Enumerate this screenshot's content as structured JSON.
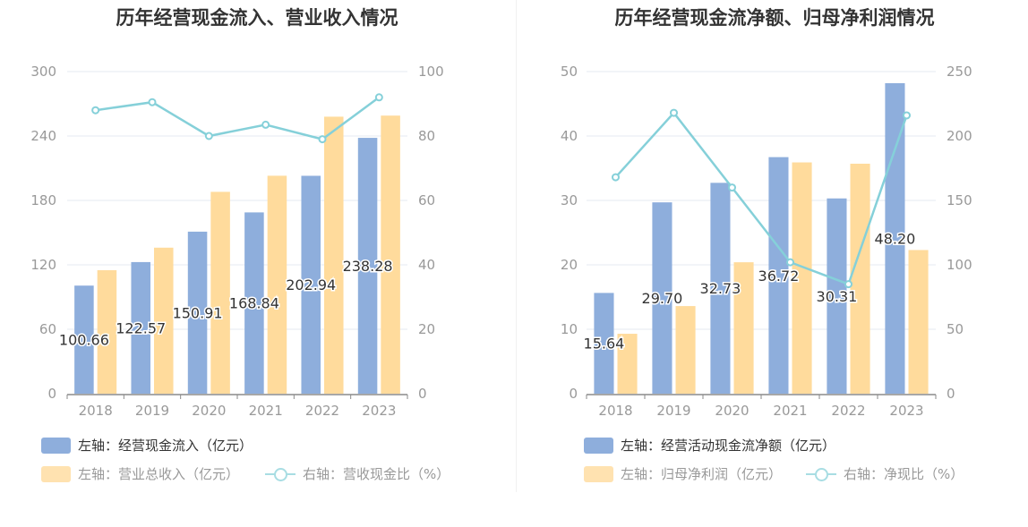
{
  "colors": {
    "bar1": "#8eaedc",
    "bar2": "#ffdb9c",
    "line": "#85d0d9",
    "axis_text": "#999999",
    "grid": "#e6e9f2",
    "legend_text1": "#333333",
    "legend_text2": "#999999"
  },
  "chart_data": [
    {
      "type": "bar",
      "title": "历年经营现金流入、营业收入情况",
      "categories": [
        "2018",
        "2019",
        "2020",
        "2021",
        "2022",
        "2023"
      ],
      "y_left": {
        "ticks": [
          "0",
          "60",
          "120",
          "180",
          "240",
          "300"
        ],
        "ylim": [
          0,
          300
        ]
      },
      "y_right": {
        "ticks": [
          "0",
          "20",
          "40",
          "60",
          "80",
          "100"
        ],
        "ylim": [
          0,
          100
        ]
      },
      "series": [
        {
          "name": "左轴：经营现金流入（亿元）",
          "type": "bar",
          "axis": "left",
          "values": [
            100.66,
            122.57,
            150.91,
            168.84,
            202.94,
            238.28
          ],
          "labels": [
            "100.66",
            "122.57",
            "150.91",
            "168.84",
            "202.94",
            "238.28"
          ]
        },
        {
          "name": "左轴：营业总收入（亿元）",
          "type": "bar",
          "axis": "left",
          "values": [
            115,
            136,
            188,
            203,
            258,
            259
          ]
        },
        {
          "name": "右轴：营收现金比（%）",
          "type": "line",
          "axis": "right",
          "values": [
            88,
            90.5,
            80,
            83.5,
            79,
            92
          ]
        }
      ]
    },
    {
      "type": "bar",
      "title": "历年经营现金流净额、归母净利润情况",
      "categories": [
        "2018",
        "2019",
        "2020",
        "2021",
        "2022",
        "2023"
      ],
      "y_left": {
        "ticks": [
          "0",
          "10",
          "20",
          "30",
          "40",
          "50"
        ],
        "ylim": [
          0,
          50
        ]
      },
      "y_right": {
        "ticks": [
          "0",
          "50",
          "100",
          "150",
          "200",
          "250"
        ],
        "ylim": [
          0,
          250
        ]
      },
      "series": [
        {
          "name": "左轴：经营活动现金流净额（亿元）",
          "type": "bar",
          "axis": "left",
          "values": [
            15.64,
            29.7,
            32.73,
            36.72,
            30.31,
            48.2
          ],
          "labels": [
            "15.64",
            "29.70",
            "32.73",
            "36.72",
            "30.31",
            "48.20"
          ]
        },
        {
          "name": "左轴：归母净利润（亿元）",
          "type": "bar",
          "axis": "left",
          "values": [
            9.3,
            13.6,
            20.4,
            35.9,
            35.7,
            22.3
          ]
        },
        {
          "name": "右轴：净现比（%）",
          "type": "line",
          "axis": "right",
          "values": [
            168,
            218,
            160,
            102,
            85,
            216
          ]
        }
      ]
    }
  ]
}
